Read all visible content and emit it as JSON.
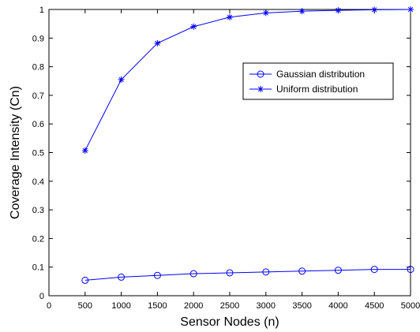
{
  "chart_data": {
    "type": "line",
    "title": "",
    "xlabel": "Sensor Nodes (n)",
    "ylabel": "Coverage Intensity (Cn)",
    "xlim": [
      0,
      5000
    ],
    "ylim": [
      0,
      1
    ],
    "xticks": [
      0,
      500,
      1000,
      1500,
      2000,
      2500,
      3000,
      3500,
      4000,
      4500,
      5000
    ],
    "yticks": [
      0,
      0.1,
      0.2,
      0.3,
      0.4,
      0.5,
      0.6,
      0.7,
      0.8,
      0.9,
      1
    ],
    "grid": false,
    "legend_position": "upper-right",
    "x": [
      500,
      1000,
      1500,
      2000,
      2500,
      3000,
      3500,
      4000,
      4500,
      5000
    ],
    "series": [
      {
        "name": "Gaussian distribution",
        "marker": "circle",
        "color": "#0000ff",
        "values": [
          0.054,
          0.065,
          0.071,
          0.077,
          0.08,
          0.083,
          0.086,
          0.089,
          0.092,
          0.092
        ]
      },
      {
        "name": "Uniform distribution",
        "marker": "star",
        "color": "#0000ff",
        "values": [
          0.507,
          0.755,
          0.882,
          0.94,
          0.973,
          0.988,
          0.994,
          0.997,
          0.999,
          1.0
        ]
      }
    ]
  }
}
